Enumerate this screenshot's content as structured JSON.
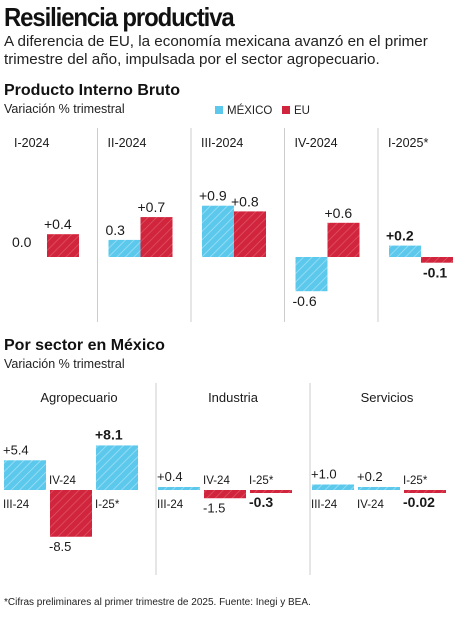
{
  "title": "Resiliencia productiva",
  "subtitle": "A diferencia de EU, la economía mexicana avanzó en el primer trimestre del año, impulsada por el sector agropecuario.",
  "colors": {
    "mexico": "#5bc8ec",
    "eu": "#d0253c",
    "divider": "#cccccc",
    "text": "#1a1a1a"
  },
  "gdp": {
    "title": "Producto Interno Bruto",
    "subtitle": "Variación % trimestral",
    "legend": {
      "mexico": "MÉXICO",
      "eu": "EU"
    }
  },
  "sectors": {
    "title": "Por sector en México",
    "subtitle": "Variación % trimestral"
  },
  "footnote": "*Cifras preliminares al primer trimestre de 2025. Fuente: Inegi y BEA.",
  "chart_data": [
    {
      "type": "bar",
      "title": "Producto Interno Bruto",
      "subtitle": "Variación % trimestral",
      "categories": [
        "I-2024",
        "II-2024",
        "III-2024",
        "IV-2024",
        "I-2025*"
      ],
      "series": [
        {
          "name": "MÉXICO",
          "values": [
            0.0,
            0.3,
            0.9,
            -0.6,
            0.2
          ],
          "labels": [
            "0.0",
            "0.3",
            "+0.9",
            "-0.6",
            "+0.2"
          ]
        },
        {
          "name": "EU",
          "values": [
            0.4,
            0.7,
            0.8,
            0.6,
            -0.1
          ],
          "labels": [
            "+0.4",
            "+0.7",
            "+0.8",
            "+0.6",
            "-0.1"
          ]
        }
      ],
      "legend": "top-right",
      "grid": false
    },
    {
      "type": "bar",
      "title": "Por sector en México",
      "subtitle": "Variación % trimestral",
      "groups": [
        {
          "name": "Agropecuario",
          "categories": [
            "III-24",
            "IV-24",
            "I-25*"
          ],
          "values": [
            5.4,
            -8.5,
            8.1
          ],
          "labels": [
            "+5.4",
            "-8.5",
            "+8.1"
          ]
        },
        {
          "name": "Industria",
          "categories": [
            "III-24",
            "IV-24",
            "I-25*"
          ],
          "values": [
            0.4,
            -1.5,
            -0.3
          ],
          "labels": [
            "+0.4",
            "-1.5",
            "-0.3"
          ]
        },
        {
          "name": "Servicios",
          "categories": [
            "III-24",
            "IV-24",
            "I-25*"
          ],
          "values": [
            1.0,
            0.2,
            -0.02
          ],
          "labels": [
            "+1.0",
            "+0.2",
            "-0.02"
          ]
        }
      ],
      "grid": false
    }
  ]
}
